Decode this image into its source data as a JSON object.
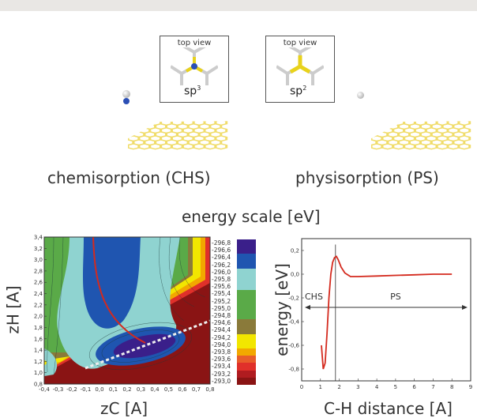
{
  "panels": {
    "chs": {
      "label": "chemisorption (CHS)",
      "inset_title": "top view",
      "hybridization": "sp",
      "hyb_sup": "3"
    },
    "ps": {
      "label": "physisorption (PS)",
      "inset_title": "top view",
      "hybridization": "sp",
      "hyb_sup": "2"
    }
  },
  "energy_scale_title": "energy scale [eV]",
  "contour": {
    "xlabel": "zC [A]",
    "ylabel": "zH [A]",
    "x_ticks": [
      "-0,4",
      "-0,3",
      "-0,2",
      "-0,1",
      "0,0",
      "0,1",
      "0,2",
      "0,3",
      "0,4",
      "0,5",
      "0,6",
      "0,7",
      "0,8"
    ],
    "y_ticks": [
      "3,4",
      "3,2",
      "3,0",
      "2,8",
      "2,6",
      "2,4",
      "2,2",
      "2,0",
      "1,8",
      "1,6",
      "1,4",
      "1,2",
      "1,0",
      "0,8"
    ]
  },
  "colorscale": {
    "levels": [
      "-296,8",
      "-296,6",
      "-296,4",
      "-296,2",
      "-296,0",
      "-295,8",
      "-295,6",
      "-295,4",
      "-295,2",
      "-295,0",
      "-294,8",
      "-294,6",
      "-294,4",
      "-294,2",
      "-294,0",
      "-293,8",
      "-293,6",
      "-293,4",
      "-293,2",
      "-293,0"
    ],
    "colors": [
      "#3a1f8a",
      "#3a1f8a",
      "#1f55b0",
      "#1f55b0",
      "#8fd3d0",
      "#8fd3d0",
      "#8fd3d0",
      "#5aaa48",
      "#5aaa48",
      "#5aaa48",
      "#5aaa48",
      "#8a7a3a",
      "#8a7a3a",
      "#f2e600",
      "#f2e600",
      "#f2a800",
      "#e85d2a",
      "#e0302a",
      "#b01c20",
      "#8a1414"
    ]
  },
  "chart_data": {
    "type": "line",
    "xlabel": "C-H distance [A]",
    "ylabel": "energy [eV]",
    "xlim": [
      0,
      9
    ],
    "ylim": [
      -0.9,
      0.3
    ],
    "x_ticks": [
      "0",
      "1",
      "2",
      "3",
      "4",
      "5",
      "6",
      "7",
      "8",
      "9"
    ],
    "y_ticks": [
      "0,2",
      "0,0",
      "-0,2",
      "-0,4",
      "-0,6",
      "-0,8"
    ],
    "y_tick_values": [
      0.2,
      0.0,
      -0.2,
      -0.4,
      -0.6,
      -0.8
    ],
    "x": [
      1.05,
      1.15,
      1.25,
      1.35,
      1.45,
      1.55,
      1.65,
      1.75,
      1.85,
      1.95,
      2.1,
      2.3,
      2.6,
      3.0,
      4.0,
      5.0,
      6.0,
      7.0,
      8.0
    ],
    "y": [
      -0.6,
      -0.8,
      -0.75,
      -0.5,
      -0.2,
      0.0,
      0.1,
      0.14,
      0.15,
      0.12,
      0.06,
      0.01,
      -0.02,
      -0.02,
      -0.015,
      -0.01,
      -0.005,
      0.0,
      0.0
    ],
    "barrier_x": 1.8,
    "regions": [
      "CHS",
      "PS"
    ],
    "line_color": "#d42a1e"
  }
}
